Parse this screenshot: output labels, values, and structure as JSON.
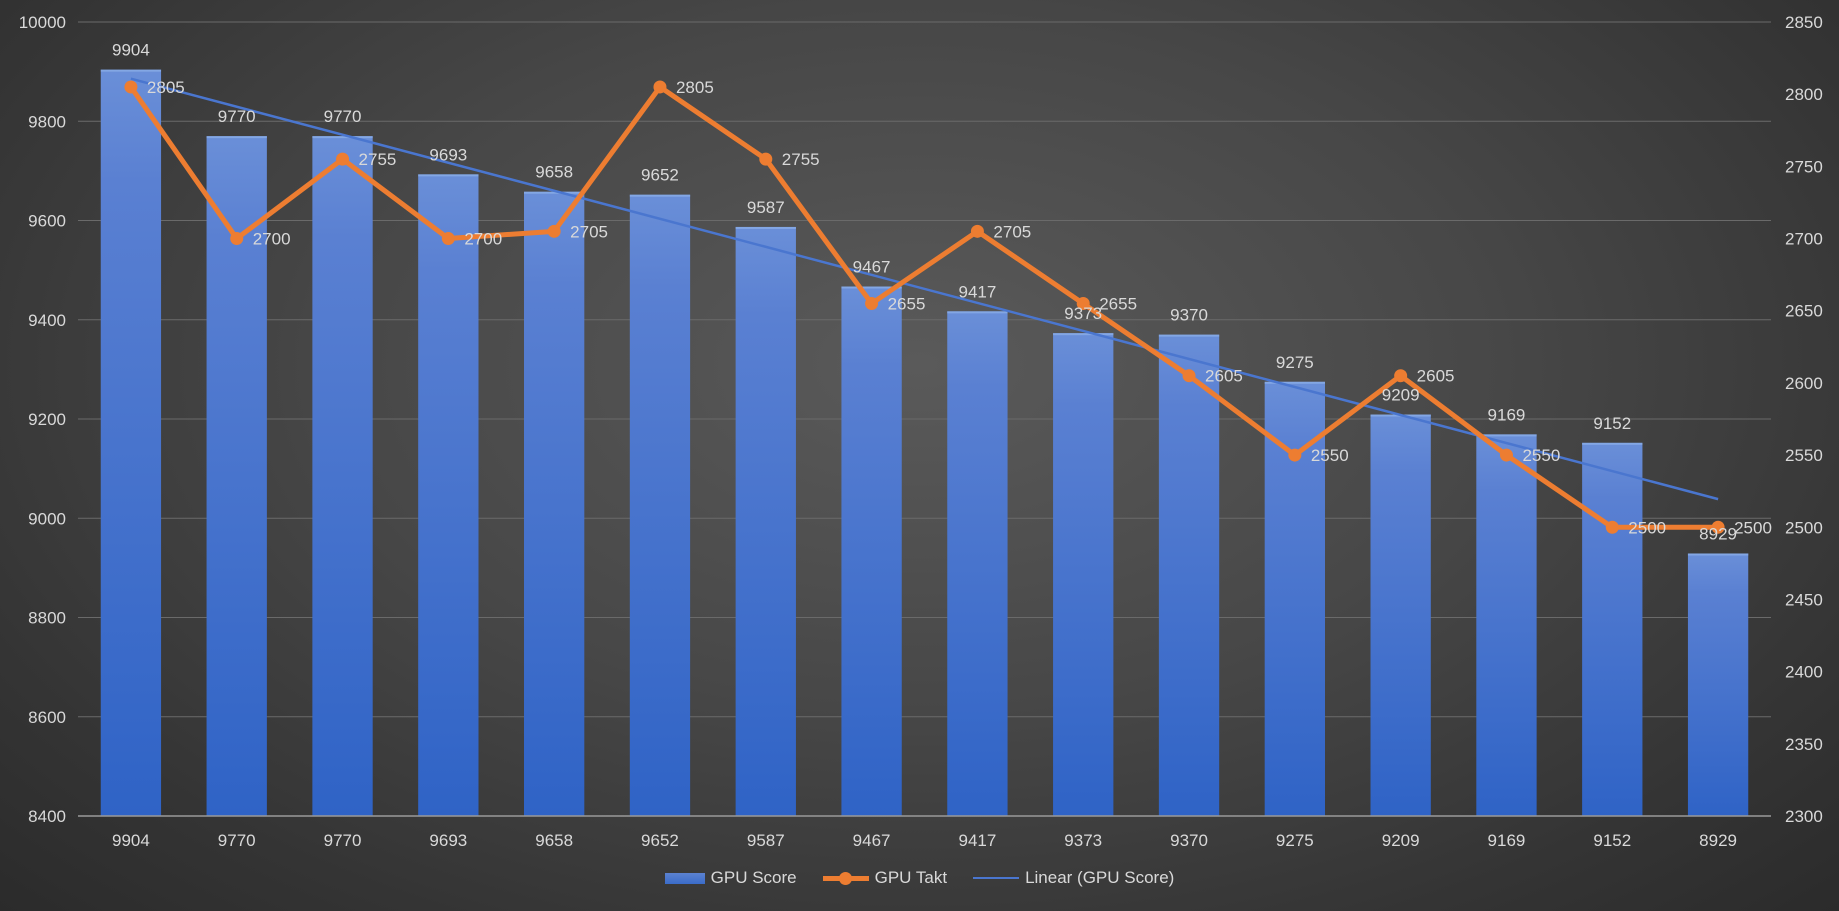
{
  "chart_data": {
    "type": "bar",
    "categories": [
      "9904",
      "9770",
      "9770",
      "9693",
      "9658",
      "9652",
      "9587",
      "9467",
      "9417",
      "9373",
      "9370",
      "9275",
      "9209",
      "9169",
      "9152",
      "8929"
    ],
    "series": [
      {
        "name": "GPU Score",
        "type": "bar",
        "axis": "left",
        "values": [
          9904,
          9770,
          9770,
          9693,
          9658,
          9652,
          9587,
          9467,
          9417,
          9373,
          9370,
          9275,
          9209,
          9169,
          9152,
          8929
        ],
        "color": "#4472c4"
      },
      {
        "name": "GPU Takt",
        "type": "line",
        "axis": "right",
        "values": [
          2805,
          2700,
          2755,
          2700,
          2705,
          2805,
          2755,
          2655,
          2705,
          2655,
          2605,
          2550,
          2605,
          2550,
          2500,
          2500
        ],
        "color": "#ed7d31",
        "markers": true
      },
      {
        "name": "Linear (GPU Score)",
        "type": "trendline",
        "axis": "left",
        "of": "GPU Score",
        "color": "#4472c4"
      }
    ],
    "y_left": {
      "range": [
        8400,
        10000
      ],
      "ticks": [
        "8400",
        "8600",
        "8800",
        "9000",
        "9200",
        "9400",
        "9600",
        "9800",
        "10000"
      ]
    },
    "y_right": {
      "range": [
        2300,
        2850
      ],
      "ticks": [
        "2300",
        "2350",
        "2400",
        "2450",
        "2500",
        "2550",
        "2600",
        "2650",
        "2700",
        "2750",
        "2800",
        "2850"
      ]
    },
    "title": "",
    "xlabel": "",
    "ylabel": "",
    "grid": true,
    "legend": "bottom"
  },
  "legend": {
    "bar_label": "GPU Score",
    "line_label": "GPU Takt",
    "trend_label": "Linear (GPU Score)"
  }
}
